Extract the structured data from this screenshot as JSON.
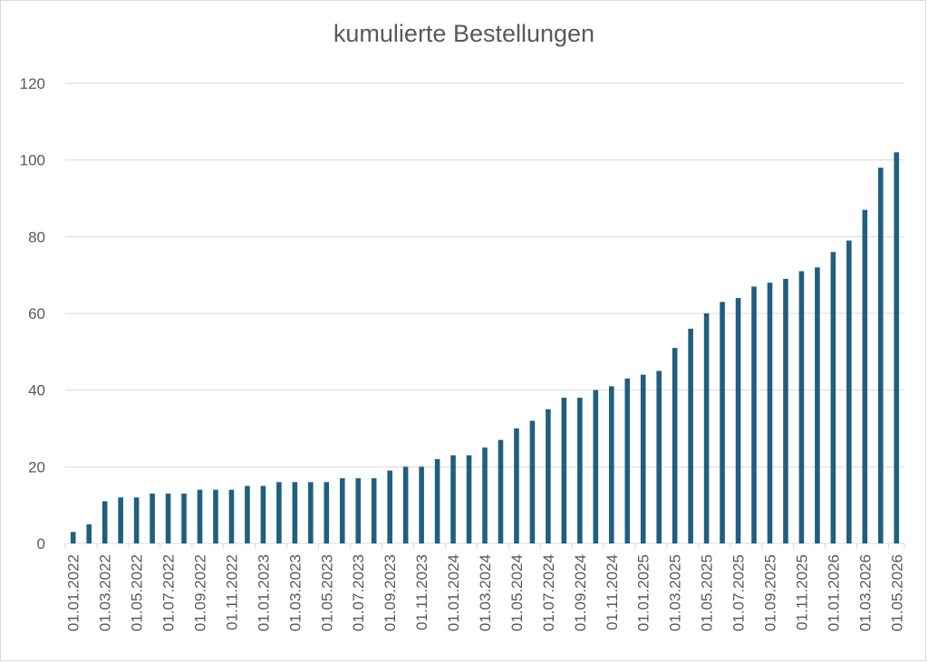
{
  "chart_data": {
    "type": "bar",
    "title": "kumulierte Bestellungen",
    "xlabel": "",
    "ylabel": "",
    "ylim": [
      0,
      120
    ],
    "yticks": [
      0,
      20,
      40,
      60,
      80,
      100,
      120
    ],
    "grid": true,
    "legend": "none",
    "bar_color": "#1F5F7F",
    "gridline_color": "#d9d9d9",
    "categories": [
      "01.01.2022",
      "01.02.2022",
      "01.03.2022",
      "01.04.2022",
      "01.05.2022",
      "01.06.2022",
      "01.07.2022",
      "01.08.2022",
      "01.09.2022",
      "01.10.2022",
      "01.11.2022",
      "01.12.2022",
      "01.01.2023",
      "01.02.2023",
      "01.03.2023",
      "01.04.2023",
      "01.05.2023",
      "01.06.2023",
      "01.07.2023",
      "01.08.2023",
      "01.09.2023",
      "01.10.2023",
      "01.11.2023",
      "01.12.2023",
      "01.01.2024",
      "01.02.2024",
      "01.03.2024",
      "01.04.2024",
      "01.05.2024",
      "01.06.2024",
      "01.07.2024",
      "01.08.2024",
      "01.09.2024",
      "01.10.2024",
      "01.11.2024",
      "01.12.2024",
      "01.01.2025",
      "01.02.2025",
      "01.03.2025",
      "01.04.2025",
      "01.05.2025",
      "01.06.2025",
      "01.07.2025",
      "01.08.2025",
      "01.09.2025",
      "01.10.2025",
      "01.11.2025",
      "01.12.2025",
      "01.01.2026",
      "01.02.2026",
      "01.03.2026",
      "01.04.2026",
      "01.05.2026"
    ],
    "x_tick_labels": [
      "01.01.2022",
      "01.03.2022",
      "01.05.2022",
      "01.07.2022",
      "01.09.2022",
      "01.11.2022",
      "01.01.2023",
      "01.03.2023",
      "01.05.2023",
      "01.07.2023",
      "01.09.2023",
      "01.11.2023",
      "01.01.2024",
      "01.03.2024",
      "01.05.2024",
      "01.07.2024",
      "01.09.2024",
      "01.11.2024",
      "01.01.2025",
      "01.03.2025",
      "01.05.2025",
      "01.07.2025",
      "01.09.2025",
      "01.11.2025",
      "01.01.2026",
      "01.03.2026",
      "01.05.2026"
    ],
    "values": [
      3,
      5,
      11,
      12,
      12,
      13,
      13,
      13,
      14,
      14,
      14,
      15,
      15,
      16,
      16,
      16,
      16,
      17,
      17,
      17,
      19,
      20,
      20,
      22,
      23,
      23,
      25,
      27,
      30,
      32,
      35,
      38,
      38,
      40,
      41,
      43,
      44,
      45,
      51,
      56,
      60,
      63,
      64,
      67,
      68,
      69,
      71,
      72,
      76,
      79,
      87,
      98,
      102
    ]
  }
}
